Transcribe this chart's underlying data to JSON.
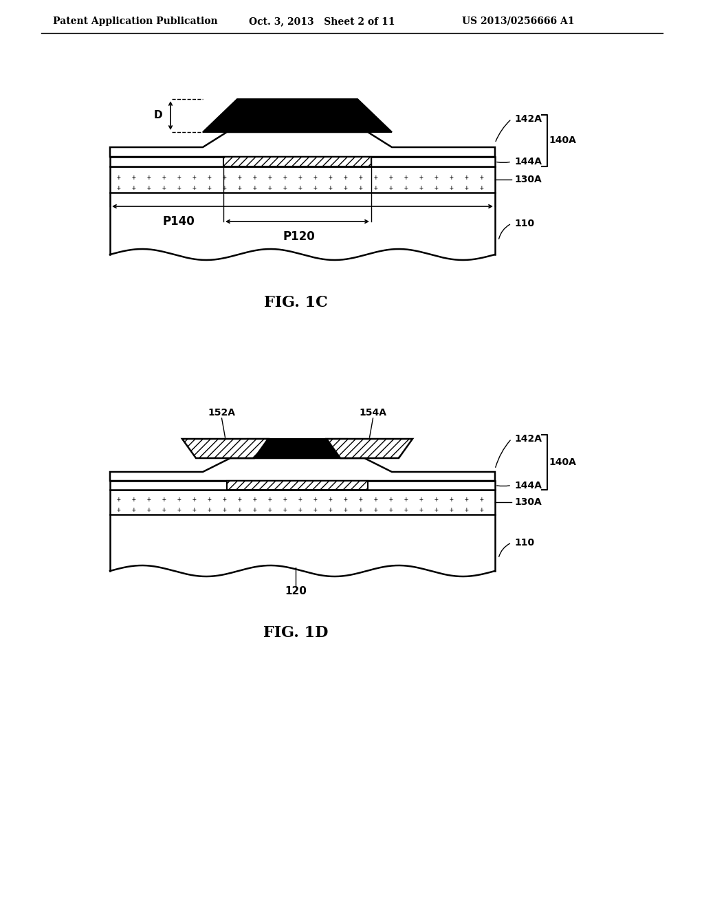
{
  "bg_color": "#ffffff",
  "header_left": "Patent Application Publication",
  "header_mid": "Oct. 3, 2013   Sheet 2 of 11",
  "header_right": "US 2013/0256666 A1",
  "fig1c_title": "FIG. 1C",
  "fig1d_title": "FIG. 1D",
  "label_142A": "142A",
  "label_144A": "144A",
  "label_140A": "140A",
  "label_130A": "130A",
  "label_110": "110",
  "label_152A": "152A",
  "label_154A": "154A",
  "label_120": "120",
  "label_P140": "P140",
  "label_P120": "P120",
  "label_D": "D"
}
